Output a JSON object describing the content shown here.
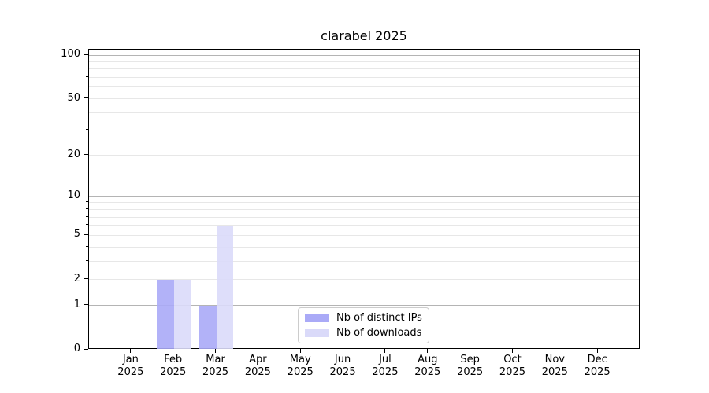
{
  "chart_data": {
    "type": "bar",
    "title": "clarabel 2025",
    "categories": [
      "Jan",
      "Feb",
      "Mar",
      "Apr",
      "May",
      "Jun",
      "Jul",
      "Aug",
      "Sep",
      "Oct",
      "Nov",
      "Dec"
    ],
    "category_year": "2025",
    "series": [
      {
        "name": "Nb of distinct IPs",
        "color": "#aaaaf7",
        "values": [
          0,
          2,
          1,
          0,
          0,
          0,
          0,
          0,
          0,
          0,
          0,
          0
        ]
      },
      {
        "name": "Nb of downloads",
        "color": "#dadaf9",
        "values": [
          0,
          2,
          6,
          0,
          0,
          0,
          0,
          0,
          0,
          0,
          0,
          0
        ]
      }
    ],
    "yscale": "log1p",
    "ylim": [
      0,
      110
    ],
    "y_tick_labels": [
      0,
      1,
      2,
      5,
      10,
      20,
      50,
      100
    ],
    "y_major_gridlines": [
      1,
      10,
      100
    ],
    "y_minor_gridlines": [
      2,
      3,
      4,
      5,
      6,
      7,
      8,
      9,
      20,
      30,
      40,
      50,
      60,
      70,
      80,
      90
    ],
    "grid": true,
    "legend_position": "lower center"
  },
  "colors": {
    "major_grid": "#b4b4b4",
    "minor_grid": "#e7e7e7",
    "spine": "#000000",
    "background": "#ffffff"
  }
}
